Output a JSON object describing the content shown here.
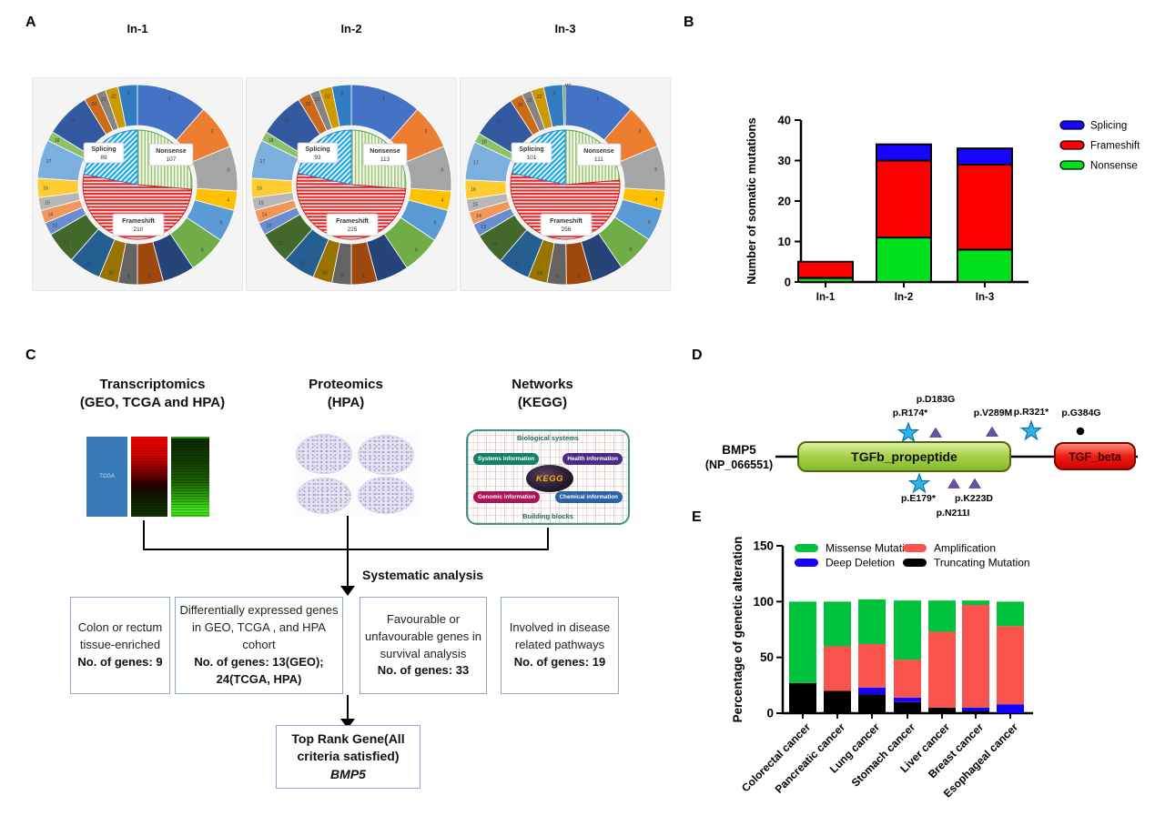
{
  "panel_letters": {
    "a": "A",
    "b": "B",
    "c": "C",
    "d": "D",
    "e": "E"
  },
  "panel_a": {
    "outer_weights": [
      11,
      7,
      7,
      3,
      5,
      6,
      5,
      4,
      3,
      3,
      5,
      5,
      2,
      2,
      2,
      3,
      6,
      1.5,
      7,
      2,
      1.5,
      2,
      3
    ],
    "mt_weight": 0.35
  },
  "chart_data": [
    {
      "id": "pie-in1",
      "type": "pie",
      "title": "In-1",
      "labels": [
        "Splicing",
        "Nonsense",
        "Frameshift"
      ],
      "values": [
        89,
        107,
        210
      ],
      "outer_labels": [
        "1",
        "2",
        "3",
        "4",
        "5",
        "6",
        "7",
        "8",
        "9",
        "10",
        "11",
        "12",
        "13",
        "14",
        "15",
        "16",
        "17",
        "18",
        "19",
        "20",
        "21",
        "22",
        "X"
      ]
    },
    {
      "id": "pie-in2",
      "type": "pie",
      "title": "In-2",
      "labels": [
        "Splicing",
        "Nonsense",
        "Frameshift"
      ],
      "values": [
        93,
        113,
        225
      ],
      "outer_labels": [
        "1",
        "2",
        "3",
        "4",
        "5",
        "6",
        "7",
        "8",
        "9",
        "10",
        "11",
        "12",
        "13",
        "14",
        "15",
        "16",
        "17",
        "18",
        "19",
        "20",
        "21",
        "22",
        "X"
      ]
    },
    {
      "id": "pie-in3",
      "type": "pie",
      "title": "In-3",
      "labels": [
        "Splicing",
        "Nonsense",
        "Frameshift"
      ],
      "values": [
        101,
        111,
        256
      ],
      "outer_labels": [
        "1",
        "2",
        "3",
        "4",
        "5",
        "6",
        "7",
        "8",
        "9",
        "10",
        "11",
        "12",
        "13",
        "14",
        "15",
        "16",
        "17",
        "18",
        "19",
        "20",
        "21",
        "22",
        "X",
        "MT"
      ]
    },
    {
      "id": "bar-somatic",
      "type": "bar",
      "stacked": true,
      "ylabel": "Number of somatic mutations",
      "ylim": [
        0,
        40
      ],
      "yticks": [
        0,
        10,
        20,
        30,
        40
      ],
      "categories": [
        "In-1",
        "In-2",
        "In-3"
      ],
      "series": [
        {
          "name": "Nonsense",
          "color": "#00E01B",
          "values": [
            1,
            11,
            8
          ]
        },
        {
          "name": "Frameshift",
          "color": "#FF0000",
          "values": [
            4,
            19,
            21
          ]
        },
        {
          "name": "Splicing",
          "color": "#1605FF",
          "values": [
            0,
            4,
            4
          ]
        }
      ],
      "legend": [
        "Splicing",
        "Frameshift",
        "Nonsense"
      ],
      "legend_position": "right"
    },
    {
      "id": "bar-alteration",
      "type": "bar",
      "stacked": true,
      "ylabel": "Percentage of genetic alteration",
      "ylim": [
        0,
        150
      ],
      "yticks": [
        0,
        50,
        100,
        150
      ],
      "categories": [
        "Colorectal cancer",
        "Pancreatic cancer",
        "Lung cancer",
        "Stomach cancer",
        "Liver cancer",
        "Breast cancer",
        "Esophageal cancer"
      ],
      "series": [
        {
          "name": "Truncating Mutation",
          "color": "#000000",
          "values": [
            27,
            20,
            17,
            10,
            5,
            2,
            0
          ]
        },
        {
          "name": "Deep Deletion",
          "color": "#1400FF",
          "values": [
            0,
            0,
            6,
            4,
            0,
            3,
            8
          ]
        },
        {
          "name": "Amplification",
          "color": "#F9534E",
          "values": [
            0,
            40,
            39,
            34,
            68,
            92,
            70
          ]
        },
        {
          "name": "Missense Mutation",
          "color": "#00C23C",
          "values": [
            73,
            40,
            40,
            53,
            28,
            4,
            22
          ]
        }
      ],
      "legend_rows": [
        [
          "Missense Mutation",
          "Amplification"
        ],
        [
          "Deep Deletion",
          "Truncating Mutation"
        ]
      ],
      "legend_position": "top"
    }
  ],
  "panel_c": {
    "columns": [
      {
        "title1": "Transcriptomics",
        "title2": "(GEO, TCGA and HPA)"
      },
      {
        "title1": "Proteomics",
        "title2": "(HPA)"
      },
      {
        "title1": "Networks",
        "title2": "(KEGG)"
      }
    ],
    "tcga_label": "TCGA",
    "kegg": {
      "top": "Biological systems",
      "bottom": "Building blocks",
      "pills": [
        "Systems information",
        "Health information",
        "Genomic information",
        "Chemical information"
      ],
      "logo": "KEGG"
    },
    "arrow_label": "Systematic analysis",
    "filter_boxes": [
      {
        "text": "Colon or rectum tissue-enriched",
        "bold": "No. of genes: 9"
      },
      {
        "text": "Differentially expressed genes in GEO, TCGA , and HPA cohort",
        "bold": "No. of genes: 13(GEO); 24(TCGA, HPA)"
      },
      {
        "text": "Favourable or unfavourable genes in survival analysis",
        "bold": "No. of genes: 33"
      },
      {
        "text": "Involved in disease related pathways",
        "bold": "No. of genes: 19"
      }
    ],
    "result_box": {
      "bold": "Top Rank Gene(All criteria satisfied)",
      "italic": "BMP5"
    }
  },
  "panel_d": {
    "protein": "BMP5",
    "accession": "(NP_066551)",
    "domains": [
      {
        "name": "TGFb_propeptide",
        "color": "#9BCB3C"
      },
      {
        "name": "TGF_beta",
        "color": "#EF1D12"
      }
    ],
    "mutations_above": [
      {
        "label": "p.R174*",
        "marker": "star"
      },
      {
        "label": "p.D183G",
        "marker": "triangle"
      },
      {
        "label": "p.V289M",
        "marker": "triangle"
      },
      {
        "label": "p.R321*",
        "marker": "star"
      },
      {
        "label": "p.G384G",
        "marker": "circle"
      }
    ],
    "mutations_below": [
      {
        "label": "p.E179*",
        "marker": "star"
      },
      {
        "label": "p.N211I",
        "marker": "triangle"
      },
      {
        "label": "p.K223D",
        "marker": "triangle"
      }
    ]
  }
}
